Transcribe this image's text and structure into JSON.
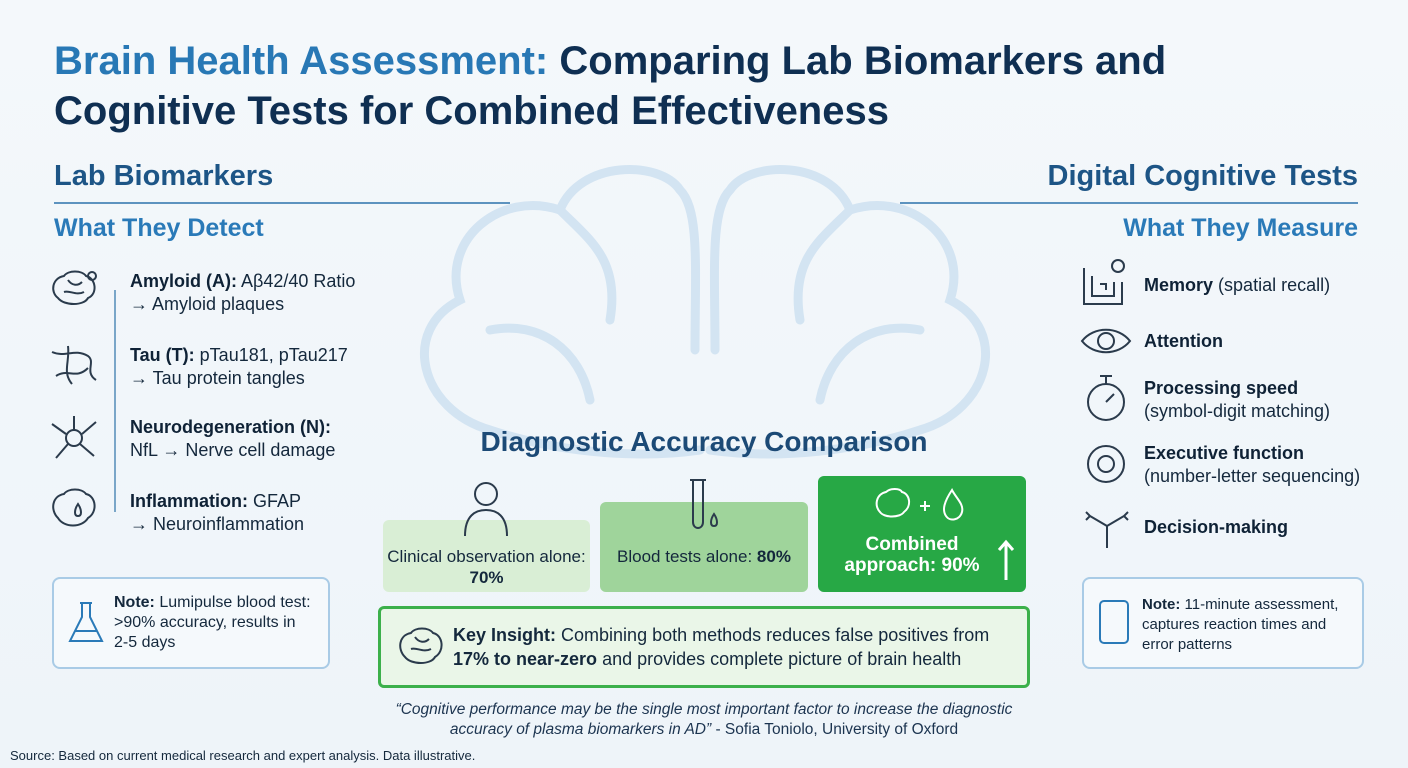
{
  "header": {
    "title_highlight": "Brain Health Assessment:",
    "title_rest": "Comparing Lab Biomarkers and Cognitive Tests for Combined Effectiveness"
  },
  "left": {
    "heading": "Lab Biomarkers",
    "subheading": "What They Detect",
    "items": [
      {
        "label": "Amyloid (A):",
        "text": "Aβ42/40 Ratio",
        "result": "→ Amyloid plaques"
      },
      {
        "label": "Tau (T):",
        "text": "pTau181, pTau217",
        "result": "→ Tau protein tangles"
      },
      {
        "label": "Neurodegeneration (N):",
        "result": "NfL → Nerve cell damage"
      },
      {
        "label": "Inflammation:",
        "text": "GFAP",
        "result": "→ Neuroinflammation"
      }
    ],
    "note": {
      "label": "Note:",
      "text": "Lumipulse blood test: >90% accuracy, results in 2-5 days"
    }
  },
  "right": {
    "heading": "Digital Cognitive Tests",
    "subheading": "What They Measure",
    "items": [
      {
        "label": "Memory",
        "text": "(spatial recall)"
      },
      {
        "label": "Attention"
      },
      {
        "label": "Processing speed",
        "detail": "(symbol-digit matching)"
      },
      {
        "label": "Executive function",
        "detail": "(number-letter sequencing)"
      },
      {
        "label": "Decision-making"
      }
    ],
    "note": {
      "label": "Note:",
      "text": "11-minute assessment, captures reaction times and error patterns"
    }
  },
  "comparison": {
    "title": "Diagnostic Accuracy Comparison",
    "cards": [
      {
        "text": "Clinical observation alone:",
        "value": "70%"
      },
      {
        "text": "Blood tests alone:",
        "value": "80%"
      },
      {
        "text": "Combined approach:",
        "value": "90%"
      }
    ]
  },
  "insight": {
    "label": "Key Insight:",
    "text": "Combining both methods reduces false positives from",
    "bold": "17% to near-zero",
    "rest": "and provides complete picture of brain health"
  },
  "quote": {
    "text": "“Cognitive performance may be the single most important factor to increase the diagnostic accuracy of plasma biomarkers in AD”",
    "attribution": "- Sofia Toniolo, University of Oxford"
  },
  "footer": {
    "source": "Source: Based on current medical research and expert analysis. Data illustrative."
  }
}
